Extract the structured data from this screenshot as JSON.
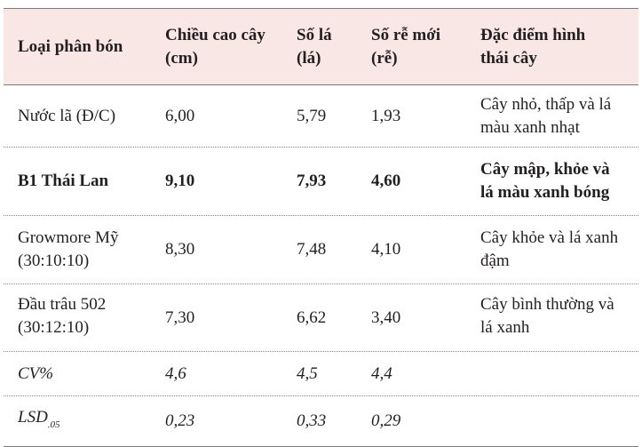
{
  "headers": {
    "col1": "Loại phân bón",
    "col2_line1": "Chiều cao  cây",
    "col2_line2": "(cm)",
    "col3_line1": "Số lá",
    "col3_line2": "(lá)",
    "col4_line1": "Số rễ mới",
    "col4_line2": "(rễ)",
    "col5_line1": "Đặc điểm hình",
    "col5_line2": "thái cây"
  },
  "rows": [
    {
      "type_line1": "Nước lã (Đ/C)",
      "type_line2": "",
      "height": "6,00",
      "leaves": "5,79",
      "roots": "1,93",
      "desc_line1": "Cây nhỏ, thấp và lá",
      "desc_line2": "màu xanh nhạt"
    },
    {
      "type_line1": "B1 Thái Lan",
      "type_line2": "",
      "height": "9,10",
      "leaves": "7,93",
      "roots": "4,60",
      "desc_line1": "Cây mập, khỏe và",
      "desc_line2": "lá màu xanh bóng"
    },
    {
      "type_line1": "Growmore Mỹ",
      "type_line2": "(30:10:10)",
      "height": "8,30",
      "leaves": "7,48",
      "roots": "4,10",
      "desc_line1": "Cây khỏe và lá xanh",
      "desc_line2": "đậm"
    },
    {
      "type_line1": "Đầu trâu 502",
      "type_line2": "(30:12:10)",
      "height": "7,30",
      "leaves": "6,62",
      "roots": "3,40",
      "desc_line1": "Cây bình thường và",
      "desc_line2": "lá xanh"
    }
  ],
  "stats": [
    {
      "label": "CV%",
      "sub": "",
      "height": "4,6",
      "leaves": "4,5",
      "roots": "4,4"
    },
    {
      "label": "LSD",
      "sub": ".05",
      "height": "0,23",
      "leaves": "0,33",
      "roots": "0,29"
    }
  ]
}
